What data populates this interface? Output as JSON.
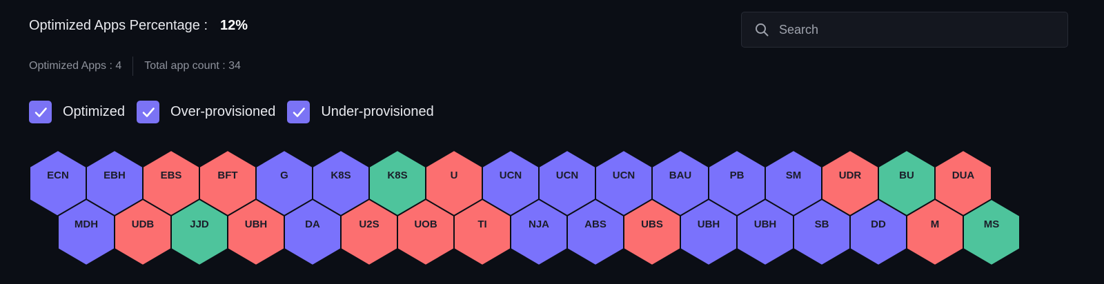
{
  "header": {
    "title_label": "Optimized Apps Percentage :",
    "percentage": "12%"
  },
  "stats": {
    "optimized": "Optimized Apps : 4",
    "total": "Total app count : 34"
  },
  "filters": [
    {
      "label": "Optimized",
      "checked": true
    },
    {
      "label": "Over-provisioned",
      "checked": true
    },
    {
      "label": "Under-provisioned",
      "checked": true
    }
  ],
  "search": {
    "placeholder": "Search",
    "value": ""
  },
  "colors": {
    "optimized": "#4ec49c",
    "over": "#fc6f70",
    "under": "#7a72fc",
    "outline": "#0b0e15"
  },
  "apps": {
    "row1": [
      {
        "name": "ECN",
        "status": "under"
      },
      {
        "name": "EBH",
        "status": "under"
      },
      {
        "name": "EBS",
        "status": "over"
      },
      {
        "name": "BFT",
        "status": "over"
      },
      {
        "name": "G",
        "status": "under"
      },
      {
        "name": "K8S",
        "status": "under"
      },
      {
        "name": "K8S",
        "status": "optimized"
      },
      {
        "name": "U",
        "status": "over"
      },
      {
        "name": "UCN",
        "status": "under"
      },
      {
        "name": "UCN",
        "status": "under"
      },
      {
        "name": "UCN",
        "status": "under"
      },
      {
        "name": "BAU",
        "status": "under"
      },
      {
        "name": "PB",
        "status": "under"
      },
      {
        "name": "SM",
        "status": "under"
      },
      {
        "name": "UDR",
        "status": "over"
      },
      {
        "name": "BU",
        "status": "optimized"
      },
      {
        "name": "DUA",
        "status": "over"
      }
    ],
    "row2": [
      {
        "name": "MDH",
        "status": "under"
      },
      {
        "name": "UDB",
        "status": "over"
      },
      {
        "name": "JJD",
        "status": "optimized"
      },
      {
        "name": "UBH",
        "status": "over"
      },
      {
        "name": "DA",
        "status": "under"
      },
      {
        "name": "U2S",
        "status": "over"
      },
      {
        "name": "UOB",
        "status": "over"
      },
      {
        "name": "TI",
        "status": "over"
      },
      {
        "name": "NJA",
        "status": "under"
      },
      {
        "name": "ABS",
        "status": "under"
      },
      {
        "name": "UBS",
        "status": "over"
      },
      {
        "name": "UBH",
        "status": "under"
      },
      {
        "name": "UBH",
        "status": "under"
      },
      {
        "name": "SB",
        "status": "under"
      },
      {
        "name": "DD",
        "status": "under"
      },
      {
        "name": "M",
        "status": "over"
      },
      {
        "name": "MS",
        "status": "optimized"
      }
    ]
  }
}
